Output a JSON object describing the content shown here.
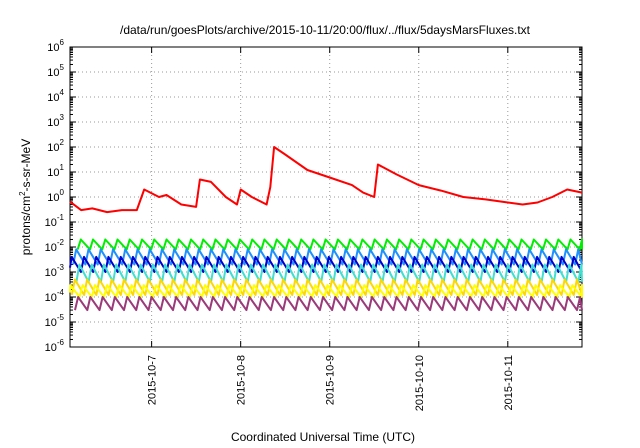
{
  "chart_data": {
    "type": "line",
    "title": "/data/run/goesPlots/archive/2015-10-11/20:00/flux/../flux/5daysMarsFluxes.txt",
    "xlabel": "Coordinated Universal Time (UTC)",
    "ylabel_parts": [
      "protons/cm",
      "2",
      "-s-sr-MeV"
    ],
    "yscale": "log",
    "ylim_exp": [
      -6,
      6
    ],
    "y_ticks": [
      {
        "base": "10",
        "exp": "6"
      },
      {
        "base": "10",
        "exp": "5"
      },
      {
        "base": "10",
        "exp": "4"
      },
      {
        "base": "10",
        "exp": "3"
      },
      {
        "base": "10",
        "exp": "2"
      },
      {
        "base": "10",
        "exp": "1"
      },
      {
        "base": "10",
        "exp": "0"
      },
      {
        "base": "10",
        "exp": "-1"
      },
      {
        "base": "10",
        "exp": "-2"
      },
      {
        "base": "10",
        "exp": "-3"
      },
      {
        "base": "10",
        "exp": "-4"
      },
      {
        "base": "10",
        "exp": "-5"
      },
      {
        "base": "10",
        "exp": "-6"
      }
    ],
    "xlim": [
      "2015-10-06 02:00",
      "2015-10-11 20:00"
    ],
    "x_ticks": [
      "2015-10-7",
      "2015-10-8",
      "2015-10-9",
      "2015-10-10",
      "2015-10-11"
    ],
    "grid": true,
    "series": [
      {
        "color": "#ff0000",
        "points": [
          [
            "2015-10-06 02:00",
            0.65
          ],
          [
            "2015-10-06 05:00",
            0.3
          ],
          [
            "2015-10-06 08:00",
            0.35
          ],
          [
            "2015-10-06 12:00",
            0.25
          ],
          [
            "2015-10-06 16:00",
            0.3
          ],
          [
            "2015-10-06 20:00",
            0.3
          ],
          [
            "2015-10-06 22:00",
            2.0
          ],
          [
            "2015-10-07 02:00",
            1.0
          ],
          [
            "2015-10-07 04:00",
            1.2
          ],
          [
            "2015-10-07 08:00",
            0.5
          ],
          [
            "2015-10-07 12:00",
            0.4
          ],
          [
            "2015-10-07 13:00",
            5.0
          ],
          [
            "2015-10-07 16:00",
            4.0
          ],
          [
            "2015-10-07 20:00",
            1.0
          ],
          [
            "2015-10-07 23:00",
            0.5
          ],
          [
            "2015-10-08 00:00",
            2.0
          ],
          [
            "2015-10-08 03:00",
            1.0
          ],
          [
            "2015-10-08 07:00",
            0.5
          ],
          [
            "2015-10-08 08:00",
            2.5
          ],
          [
            "2015-10-08 09:00",
            100
          ],
          [
            "2015-10-08 12:00",
            50
          ],
          [
            "2015-10-08 18:00",
            12
          ],
          [
            "2015-10-09 00:00",
            6
          ],
          [
            "2015-10-09 06:00",
            3
          ],
          [
            "2015-10-09 09:00",
            1.5
          ],
          [
            "2015-10-09 12:00",
            1.0
          ],
          [
            "2015-10-09 13:00",
            20
          ],
          [
            "2015-10-09 18:00",
            8
          ],
          [
            "2015-10-10 00:00",
            3
          ],
          [
            "2015-10-10 06:00",
            1.8
          ],
          [
            "2015-10-10 12:00",
            1.0
          ],
          [
            "2015-10-10 18:00",
            0.8
          ],
          [
            "2015-10-11 00:00",
            0.6
          ],
          [
            "2015-10-11 04:00",
            0.5
          ],
          [
            "2015-10-11 08:00",
            0.6
          ],
          [
            "2015-10-11 12:00",
            1.0
          ],
          [
            "2015-10-11 16:00",
            2.0
          ],
          [
            "2015-10-11 20:00",
            1.5
          ]
        ]
      },
      {
        "color": "#00ee00",
        "sawtooth": {
          "period_h": 3.3,
          "peak": 0.02,
          "trough": 0.008
        }
      },
      {
        "color": "#1e90ff",
        "sawtooth": {
          "period_h": 3.3,
          "peak": 0.008,
          "trough": 0.002
        }
      },
      {
        "color": "#0000cd",
        "sawtooth": {
          "period_h": 3.3,
          "peak": 0.004,
          "trough": 0.001
        }
      },
      {
        "color": "#40e0d0",
        "sawtooth": {
          "period_h": 3.3,
          "peak": 0.002,
          "trough": 0.0004
        }
      },
      {
        "color": "#ffd700",
        "sawtooth": {
          "period_h": 3.3,
          "peak": 0.0005,
          "trough": 0.00012
        }
      },
      {
        "color": "#ffff00",
        "sawtooth": {
          "period_h": 3.3,
          "peak": 0.0003,
          "trough": 0.0001
        }
      },
      {
        "color": "#9b3a7a",
        "sawtooth": {
          "period_h": 3.3,
          "peak": 0.0001,
          "trough": 3e-05
        }
      }
    ]
  }
}
